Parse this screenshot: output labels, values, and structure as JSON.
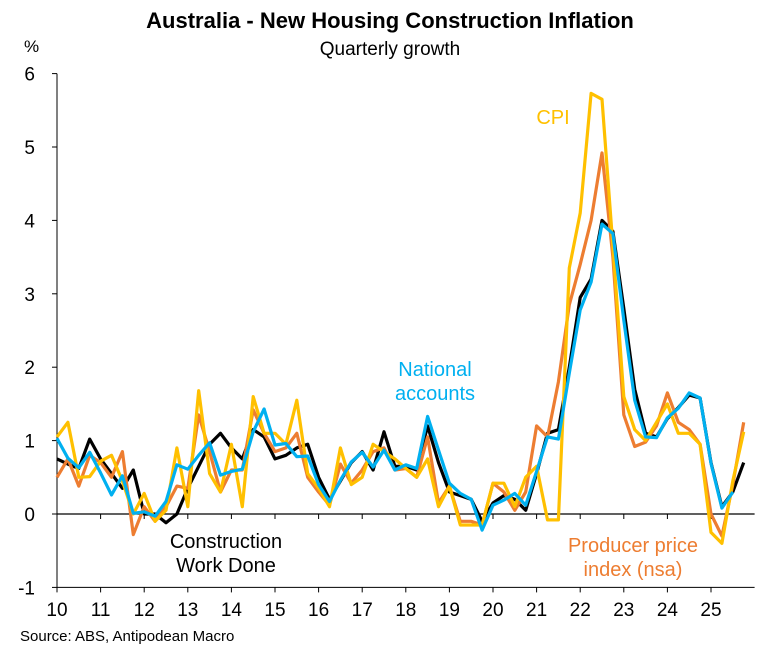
{
  "chart_data": {
    "type": "line",
    "title": "Australia - New Housing Construction Inflation",
    "subtitle": "Quarterly growth",
    "ylabel": "%",
    "ylim": [
      -1,
      6
    ],
    "yticks": [
      "6",
      "5",
      "4",
      "3",
      "2",
      "1",
      "0",
      "-1"
    ],
    "xticks": [
      "10",
      "11",
      "12",
      "13",
      "14",
      "15",
      "16",
      "17",
      "18",
      "19",
      "20",
      "21",
      "22",
      "23",
      "24",
      "25"
    ],
    "x_start": "2010 Q1",
    "frequency": "quarterly",
    "grid": false,
    "source": "Source: ABS, Antipodean Macro",
    "series": [
      {
        "name": "Construction Work Done",
        "label_lines": [
          "Construction",
          "Work Done"
        ],
        "color": "#000000",
        "values": [
          0.75,
          0.68,
          0.62,
          1.02,
          0.75,
          0.55,
          0.35,
          0.6,
          0.0,
          0.0,
          -0.12,
          0.0,
          0.35,
          0.65,
          0.95,
          1.1,
          0.9,
          0.75,
          1.15,
          1.05,
          0.75,
          0.8,
          0.9,
          0.95,
          0.5,
          0.2,
          0.45,
          0.7,
          0.85,
          0.6,
          1.12,
          0.65,
          0.65,
          0.6,
          1.2,
          0.7,
          0.3,
          0.25,
          0.2,
          -0.1,
          0.15,
          0.25,
          0.2,
          0.05,
          0.55,
          1.1,
          1.15,
          2.0,
          2.95,
          3.2,
          4.0,
          3.85,
          2.8,
          1.7,
          1.1,
          1.05,
          1.3,
          1.45,
          1.62,
          1.58,
          0.7,
          0.1,
          0.3,
          0.7
        ]
      },
      {
        "name": "Producer price index (nsa)",
        "label_lines": [
          "Producer price",
          "index (nsa)"
        ],
        "color": "#ED7D31",
        "values": [
          0.5,
          0.75,
          0.38,
          0.8,
          0.7,
          0.5,
          0.85,
          -0.28,
          0.1,
          -0.1,
          0.1,
          0.38,
          0.35,
          1.35,
          0.85,
          0.3,
          0.6,
          0.6,
          1.42,
          1.1,
          0.85,
          0.9,
          1.1,
          0.5,
          0.3,
          0.12,
          0.68,
          0.42,
          0.6,
          0.85,
          0.9,
          0.6,
          0.62,
          0.5,
          1.05,
          0.15,
          0.38,
          -0.1,
          -0.1,
          -0.15,
          0.42,
          0.3,
          0.05,
          0.3,
          1.2,
          1.05,
          1.8,
          2.85,
          3.4,
          4.0,
          4.92,
          3.5,
          1.35,
          0.92,
          0.98,
          1.2,
          1.65,
          1.25,
          1.15,
          0.95,
          0.0,
          -0.3,
          0.4,
          1.25
        ]
      },
      {
        "name": "CPI",
        "label_lines": [
          "CPI"
        ],
        "color": "#FFC000",
        "values": [
          1.05,
          1.25,
          0.5,
          0.51,
          0.72,
          0.8,
          0.45,
          0.0,
          0.28,
          -0.1,
          0.05,
          0.9,
          0.1,
          1.68,
          0.55,
          0.3,
          0.95,
          0.1,
          1.6,
          1.1,
          1.1,
          0.95,
          1.55,
          0.55,
          0.35,
          0.1,
          0.9,
          0.4,
          0.5,
          0.95,
          0.85,
          0.75,
          0.62,
          0.5,
          0.75,
          0.1,
          0.38,
          -0.15,
          -0.15,
          -0.15,
          0.42,
          0.42,
          0.1,
          0.5,
          0.65,
          -0.08,
          -0.08,
          3.35,
          4.1,
          5.73,
          5.65,
          3.65,
          1.6,
          1.15,
          1.0,
          1.25,
          1.5,
          1.1,
          1.1,
          0.95,
          -0.25,
          -0.4,
          0.45,
          1.12
        ]
      },
      {
        "name": "National accounts",
        "label_lines": [
          "National",
          "accounts"
        ],
        "color": "#00B0F0",
        "values": [
          1.03,
          0.76,
          0.63,
          0.84,
          0.56,
          0.26,
          0.52,
          0.01,
          0.03,
          -0.03,
          0.17,
          0.67,
          0.61,
          0.8,
          0.97,
          0.53,
          0.58,
          0.61,
          1.12,
          1.43,
          0.94,
          0.96,
          0.78,
          0.79,
          0.4,
          0.17,
          0.46,
          0.71,
          0.84,
          0.64,
          0.87,
          0.6,
          0.67,
          0.62,
          1.33,
          0.87,
          0.42,
          0.28,
          0.2,
          -0.22,
          0.12,
          0.19,
          0.28,
          0.12,
          0.58,
          1.05,
          1.02,
          1.92,
          2.78,
          3.16,
          3.95,
          3.82,
          2.64,
          1.55,
          1.05,
          1.04,
          1.31,
          1.44,
          1.65,
          1.58,
          0.69,
          0.08,
          0.3,
          null
        ]
      }
    ]
  }
}
